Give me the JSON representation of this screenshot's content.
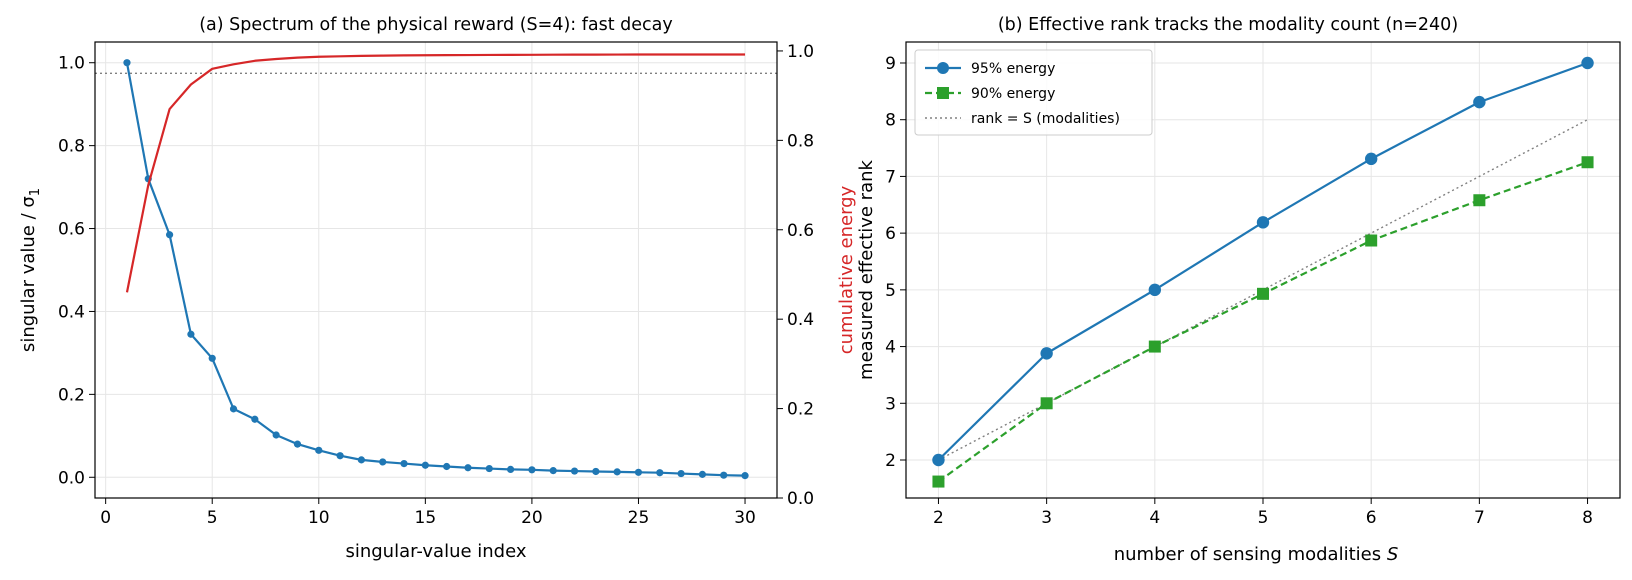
{
  "chart_data": [
    {
      "type": "line",
      "title": "(a) Spectrum of the physical reward (S=4): fast decay",
      "xlabel": "singular-value index",
      "ylabel": "singular value / σ",
      "ylabel_subscript": "1",
      "y2label": "cumulative energy",
      "xlim": [
        -0.5,
        31.5
      ],
      "ylim": [
        -0.05,
        1.05
      ],
      "y2lim": [
        0.0,
        1.02
      ],
      "xticks": [
        0,
        5,
        10,
        15,
        20,
        25,
        30
      ],
      "xtick_labels": [
        "0",
        "5",
        "10",
        "15",
        "20",
        "25",
        "30"
      ],
      "yticks": [
        0.0,
        0.2,
        0.4,
        0.6,
        0.8,
        1.0
      ],
      "ytick_labels": [
        "0.0",
        "0.2",
        "0.4",
        "0.6",
        "0.8",
        "1.0"
      ],
      "y2ticks": [
        0.0,
        0.2,
        0.4,
        0.6,
        0.8,
        1.0
      ],
      "y2tick_labels": [
        "0.0",
        "0.2",
        "0.4",
        "0.6",
        "0.8",
        "1.0"
      ],
      "grid": true,
      "x": [
        1,
        2,
        3,
        4,
        5,
        6,
        7,
        8,
        9,
        10,
        11,
        12,
        13,
        14,
        15,
        16,
        17,
        18,
        19,
        20,
        21,
        22,
        23,
        24,
        25,
        26,
        27,
        28,
        29,
        30
      ],
      "series": [
        {
          "axis": "left",
          "color": "#1f77b4",
          "marker": "circle",
          "linestyle": "solid",
          "values": [
            1.0,
            0.72,
            0.585,
            0.345,
            0.287,
            0.165,
            0.14,
            0.102,
            0.08,
            0.065,
            0.052,
            0.042,
            0.037,
            0.033,
            0.029,
            0.026,
            0.023,
            0.021,
            0.019,
            0.018,
            0.016,
            0.015,
            0.014,
            0.013,
            0.012,
            0.011,
            0.009,
            0.007,
            0.005,
            0.004
          ]
        },
        {
          "axis": "right",
          "color": "#d62728",
          "marker": "none",
          "linestyle": "solid",
          "values": [
            0.46,
            0.7,
            0.87,
            0.925,
            0.96,
            0.97,
            0.978,
            0.982,
            0.985,
            0.987,
            0.988,
            0.989,
            0.9895,
            0.99,
            0.9903,
            0.9906,
            0.9908,
            0.991,
            0.9912,
            0.9914,
            0.9916,
            0.9917,
            0.9918,
            0.9919,
            0.992,
            0.992,
            0.992,
            0.992,
            0.992,
            0.992
          ]
        }
      ],
      "reference_line": {
        "axis": "right",
        "y": 0.95,
        "color": "#808080",
        "linestyle": "dotted"
      }
    },
    {
      "type": "line",
      "title": "(b) Effective rank tracks the modality count (n=240)",
      "xlabel": "number of sensing modalities",
      "xlabel_symbol": "S",
      "ylabel": "measured effective rank",
      "xlim": [
        1.7,
        8.3
      ],
      "ylim": [
        1.33,
        9.37
      ],
      "xticks": [
        2,
        3,
        4,
        5,
        6,
        7,
        8
      ],
      "xtick_labels": [
        "2",
        "3",
        "4",
        "5",
        "6",
        "7",
        "8"
      ],
      "yticks": [
        2,
        3,
        4,
        5,
        6,
        7,
        8,
        9
      ],
      "ytick_labels": [
        "2",
        "3",
        "4",
        "5",
        "6",
        "7",
        "8",
        "9"
      ],
      "grid": true,
      "legend_position": "top-left",
      "x": [
        2,
        3,
        4,
        5,
        6,
        7,
        8
      ],
      "series": [
        {
          "name": "95% energy",
          "color": "#1f77b4",
          "marker": "circle",
          "linestyle": "solid",
          "values": [
            2.0,
            3.88,
            5.0,
            6.19,
            7.31,
            8.31,
            9.0
          ]
        },
        {
          "name": "90% energy",
          "color": "#2ca02c",
          "marker": "square",
          "linestyle": "dashed",
          "values": [
            1.62,
            3.0,
            4.0,
            4.93,
            5.87,
            6.58,
            7.25
          ]
        },
        {
          "name": "rank = S (modalities)",
          "color": "#808080",
          "marker": "none",
          "linestyle": "dotted",
          "values": [
            2,
            3,
            4,
            5,
            6,
            7,
            8
          ]
        }
      ]
    }
  ]
}
